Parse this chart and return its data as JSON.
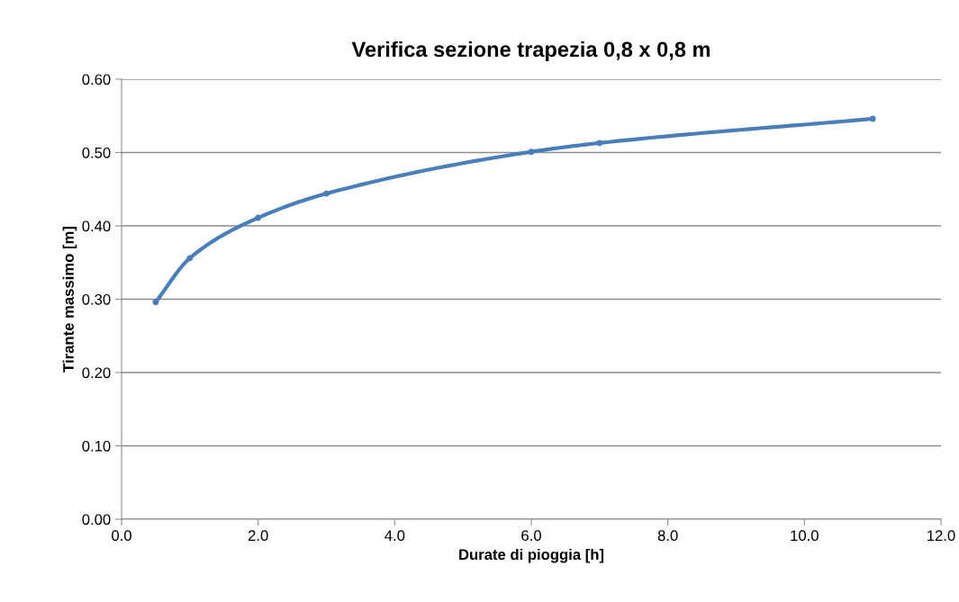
{
  "chart_data": {
    "type": "line",
    "title": "Verifica sezione trapezia 0,8 x 0,8 m",
    "xlabel": "Durate di pioggia [h]",
    "ylabel": "Tirante massimo [m]",
    "x": [
      0.5,
      1,
      2,
      3,
      6,
      7,
      11
    ],
    "series": [
      {
        "color": "#4a7ebb",
        "values": [
          0.296,
          0.356,
          0.411,
          0.444,
          0.501,
          0.513,
          0.546
        ]
      }
    ],
    "xlim": [
      0,
      12
    ],
    "xticks": [
      {
        "value": 0,
        "label": "0.0"
      },
      {
        "value": 2,
        "label": "2.0"
      },
      {
        "value": 4,
        "label": "4.0"
      },
      {
        "value": 6,
        "label": "6.0"
      },
      {
        "value": 8,
        "label": "8.0"
      },
      {
        "value": 10,
        "label": "10.0"
      },
      {
        "value": 12,
        "label": "12.0"
      }
    ],
    "ylim": [
      0,
      0.6
    ],
    "yticks": [
      {
        "value": 0,
        "label": "0.00"
      },
      {
        "value": 0.1,
        "label": "0.10"
      },
      {
        "value": 0.2,
        "label": "0.20"
      },
      {
        "value": 0.3,
        "label": "0.30"
      },
      {
        "value": 0.4,
        "label": "0.40"
      },
      {
        "value": 0.5,
        "label": "0.50"
      },
      {
        "value": 0.6,
        "label": "0.60"
      }
    ],
    "grid": "y",
    "marker": "circle",
    "line_style": "solid"
  }
}
